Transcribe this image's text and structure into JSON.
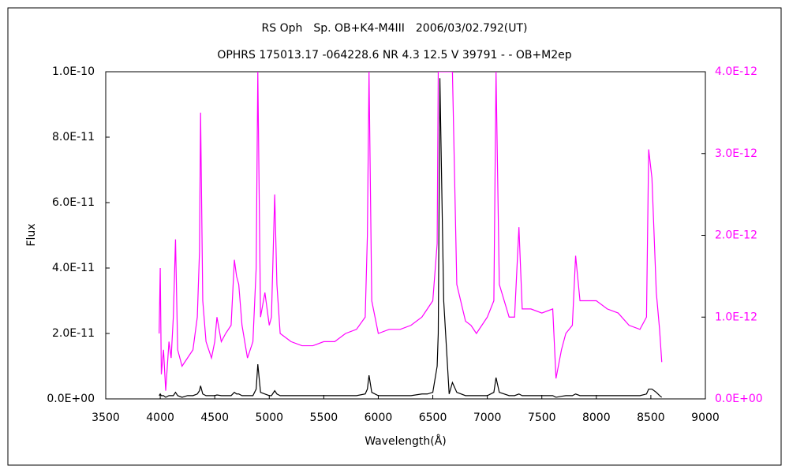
{
  "chart_data": {
    "type": "line",
    "title": "RS Oph　Sp. OB+K4-M4III　2006/03/02.792(UT)",
    "subtitle": "OPHRS 175013.17 -064228.6 NR 4.3 12.5 V 39791 - - OB+M2ep",
    "x_label": "Wavelength(Å)",
    "y_label": "Flux",
    "x": [
      3990,
      4000,
      4010,
      4030,
      4050,
      4080,
      4100,
      4120,
      4140,
      4160,
      4200,
      4250,
      4300,
      4340,
      4360,
      4370,
      4390,
      4420,
      4470,
      4500,
      4520,
      4560,
      4600,
      4650,
      4680,
      4700,
      4720,
      4750,
      4800,
      4850,
      4880,
      4895,
      4920,
      4960,
      5000,
      5020,
      5050,
      5070,
      5100,
      5200,
      5300,
      5400,
      5500,
      5600,
      5700,
      5800,
      5880,
      5900,
      5915,
      5940,
      6000,
      6100,
      6200,
      6300,
      6400,
      6450,
      6500,
      6540,
      6550,
      6565,
      6600,
      6650,
      6680,
      6720,
      6800,
      6850,
      6900,
      6950,
      7000,
      7060,
      7080,
      7110,
      7200,
      7250,
      7290,
      7320,
      7400,
      7500,
      7600,
      7630,
      7680,
      7720,
      7780,
      7810,
      7850,
      7900,
      8000,
      8100,
      8200,
      8300,
      8400,
      8460,
      8480,
      8510,
      8550,
      8580,
      8600
    ],
    "series": [
      {
        "color": "#000000",
        "axis": "y",
        "values": [
          1e-12,
          1.5e-12,
          1e-12,
          1e-12,
          5e-13,
          1e-12,
          1e-12,
          1e-12,
          2e-12,
          1e-12,
          5e-13,
          1e-12,
          1e-12,
          1.5e-12,
          2.5e-12,
          4e-12,
          1.5e-12,
          1e-12,
          1e-12,
          1e-12,
          1.2e-12,
          1e-12,
          1e-12,
          1e-12,
          2e-12,
          1.5e-12,
          1.5e-12,
          1e-12,
          1e-12,
          1e-12,
          3e-12,
          1.06e-11,
          2e-12,
          1.5e-12,
          1e-12,
          1e-12,
          2.5e-12,
          1.5e-12,
          1e-12,
          1e-12,
          1e-12,
          1e-12,
          1e-12,
          1e-12,
          1e-12,
          1e-12,
          1.5e-12,
          3e-12,
          7.2e-12,
          2e-12,
          1e-12,
          1e-12,
          1e-12,
          1e-12,
          1.5e-12,
          1.5e-12,
          2e-12,
          1e-11,
          2e-11,
          9.8e-11,
          3e-11,
          1.5e-12,
          5e-12,
          2e-12,
          1e-12,
          1e-12,
          1e-12,
          1e-12,
          1e-12,
          2e-12,
          6.5e-12,
          2e-12,
          1e-12,
          1e-12,
          1.5e-12,
          1e-12,
          1e-12,
          1e-12,
          1e-12,
          5e-13,
          8e-13,
          1e-12,
          1e-12,
          1.5e-12,
          1e-12,
          1e-12,
          1e-12,
          1e-12,
          1e-12,
          1e-12,
          1e-12,
          1.5e-12,
          3e-12,
          3e-12,
          2e-12,
          1e-12,
          5e-13
        ]
      },
      {
        "color": "#ff00ff",
        "axis": "y2",
        "values": [
          8e-13,
          1.6e-12,
          3e-13,
          6e-13,
          1e-13,
          7e-13,
          5e-13,
          1e-12,
          1.95e-12,
          6e-13,
          4e-13,
          5e-13,
          6e-13,
          1e-12,
          1.8e-12,
          3.5e-12,
          1.2e-12,
          7e-13,
          5e-13,
          7e-13,
          1e-12,
          7e-13,
          8e-13,
          9e-13,
          1.7e-12,
          1.5e-12,
          1.4e-12,
          9e-13,
          5e-13,
          7e-13,
          1.6e-12,
          4e-12,
          1e-12,
          1.3e-12,
          9e-13,
          1e-12,
          2.5e-12,
          1.4e-12,
          8e-13,
          7e-13,
          6.5e-13,
          6.5e-13,
          7e-13,
          7e-13,
          8e-13,
          8.5e-13,
          1e-12,
          2e-12,
          4e-12,
          1.2e-12,
          8e-13,
          8.5e-13,
          8.5e-13,
          9e-13,
          1e-12,
          1.1e-12,
          1.2e-12,
          1.9e-12,
          4e-12,
          4e-12,
          4e-12,
          4e-12,
          4e-12,
          1.4e-12,
          9.5e-13,
          9e-13,
          8e-13,
          9e-13,
          1e-12,
          1.2e-12,
          4e-12,
          1.4e-12,
          1e-12,
          1e-12,
          2.1e-12,
          1.1e-12,
          1.1e-12,
          1.05e-12,
          1.1e-12,
          2.5e-13,
          6e-13,
          8e-13,
          9e-13,
          1.75e-12,
          1.2e-12,
          1.2e-12,
          1.2e-12,
          1.1e-12,
          1.05e-12,
          9e-13,
          8.5e-13,
          1e-12,
          3.05e-12,
          2.7e-12,
          1.3e-12,
          8.5e-13,
          4.5e-13
        ]
      }
    ],
    "xlim": [
      3500,
      9000
    ],
    "xticks": [
      3500,
      4000,
      4500,
      5000,
      5500,
      6000,
      6500,
      7000,
      7500,
      8000,
      8500,
      9000
    ],
    "ylim": [
      0,
      1e-10
    ],
    "yticks": [
      {
        "value": 0,
        "label": "0.0E+00"
      },
      {
        "value": 2e-11,
        "label": "2.0E-11"
      },
      {
        "value": 4e-11,
        "label": "4.0E-11"
      },
      {
        "value": 6e-11,
        "label": "6.0E-11"
      },
      {
        "value": 8e-11,
        "label": "8.0E-11"
      },
      {
        "value": 1e-10,
        "label": "1.0E-10"
      }
    ],
    "y2lim": [
      0,
      4e-12
    ],
    "y2ticks": [
      {
        "value": 0,
        "label": "0.0E+00"
      },
      {
        "value": 1e-12,
        "label": "1.0E-12"
      },
      {
        "value": 2e-12,
        "label": "2.0E-12"
      },
      {
        "value": 3e-12,
        "label": "3.0E-12"
      },
      {
        "value": 4e-12,
        "label": "4.0E-12"
      }
    ],
    "y2_color": "#ff00ff"
  }
}
